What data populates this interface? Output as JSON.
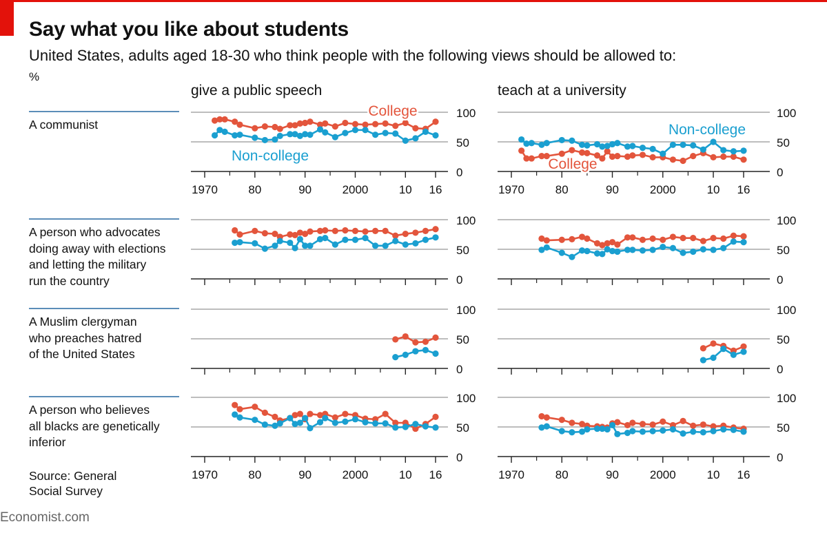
{
  "header": {
    "title": "Say what you like about students",
    "subtitle": "United States, adults aged 18-30 who think people with the following views should be allowed to:",
    "unit": "%"
  },
  "columns": [
    "give a public speech",
    "teach at a university"
  ],
  "rows": [
    {
      "label_lines": [
        "A communist"
      ]
    },
    {
      "label_lines": [
        "A person who advocates",
        "doing away with elections",
        "and letting the military",
        "run the country"
      ]
    },
    {
      "label_lines": [
        "A Muslim clergyman",
        "who preaches hatred",
        "of the United States"
      ]
    },
    {
      "label_lines": [
        "A person who believes",
        "all blacks are genetically",
        "inferior"
      ]
    }
  ],
  "source_lines": [
    "Source: General",
    "Social Survey"
  ],
  "credit": "Economist.com",
  "colors": {
    "college": "#e3553c",
    "noncollege": "#1a9fd0",
    "accent": "#e3120b",
    "grid": "#bdbdbd",
    "rule": "#5b8db8",
    "axis": "#222222",
    "text": "#111111"
  },
  "chart_data": {
    "type": "line",
    "y_range": [
      0,
      100
    ],
    "y_ticks": [
      0,
      50,
      100
    ],
    "x_range": [
      1970,
      2016
    ],
    "x_tick_values": [
      1970,
      1980,
      1990,
      2000,
      2010,
      2016
    ],
    "x_tick_labels": [
      "1970",
      "80",
      "90",
      "2000",
      "10",
      "16"
    ],
    "series_names": [
      "College",
      "Non-college"
    ],
    "panels": [
      {
        "row": 0,
        "col": 0,
        "labels": {
          "College": "College",
          "Non-college": "Non-college"
        },
        "series": [
          {
            "name": "College",
            "x": [
              1972,
              1973,
              1974,
              1976,
              1977,
              1980,
              1982,
              1984,
              1985,
              1987,
              1988,
              1989,
              1990,
              1991,
              1993,
              1994,
              1996,
              1998,
              2000,
              2002,
              2004,
              2006,
              2008,
              2010,
              2012,
              2014,
              2016
            ],
            "y": [
              86,
              88,
              88,
              84,
              79,
              73,
              76,
              75,
              72,
              78,
              78,
              81,
              82,
              84,
              79,
              81,
              76,
              82,
              80,
              79,
              80,
              81,
              77,
              82,
              73,
              72,
              84
            ]
          },
          {
            "name": "Non-college",
            "x": [
              1972,
              1973,
              1974,
              1976,
              1977,
              1980,
              1982,
              1984,
              1985,
              1987,
              1988,
              1989,
              1990,
              1991,
              1993,
              1994,
              1996,
              1998,
              2000,
              2002,
              2004,
              2006,
              2008,
              2010,
              2012,
              2014,
              2016
            ],
            "y": [
              61,
              70,
              67,
              61,
              62,
              57,
              53,
              54,
              60,
              63,
              63,
              60,
              63,
              62,
              71,
              66,
              58,
              65,
              70,
              70,
              62,
              65,
              64,
              52,
              56,
              67,
              61
            ]
          }
        ]
      },
      {
        "row": 0,
        "col": 1,
        "labels": {
          "College": "College",
          "Non-college": "Non-college"
        },
        "series": [
          {
            "name": "College",
            "x": [
              1972,
              1973,
              1974,
              1976,
              1977,
              1980,
              1982,
              1984,
              1985,
              1987,
              1988,
              1989,
              1990,
              1991,
              1993,
              1994,
              1996,
              1998,
              2000,
              2002,
              2004,
              2006,
              2008,
              2010,
              2012,
              2014,
              2016
            ],
            "y": [
              35,
              22,
              22,
              26,
              26,
              30,
              36,
              32,
              31,
              27,
              22,
              34,
              25,
              26,
              25,
              27,
              28,
              24,
              24,
              20,
              18,
              26,
              31,
              24,
              25,
              25,
              20
            ]
          },
          {
            "name": "Non-college",
            "x": [
              1972,
              1973,
              1974,
              1976,
              1977,
              1980,
              1982,
              1984,
              1985,
              1987,
              1988,
              1989,
              1990,
              1991,
              1993,
              1994,
              1996,
              1998,
              2000,
              2002,
              2004,
              2006,
              2008,
              2010,
              2012,
              2014,
              2016
            ],
            "y": [
              54,
              47,
              48,
              45,
              48,
              53,
              52,
              45,
              44,
              46,
              42,
              43,
              46,
              48,
              42,
              43,
              40,
              38,
              30,
              45,
              45,
              44,
              37,
              50,
              36,
              34,
              35
            ]
          }
        ]
      },
      {
        "row": 1,
        "col": 0,
        "labels": {},
        "series": [
          {
            "name": "College",
            "x": [
              1976,
              1977,
              1980,
              1982,
              1984,
              1985,
              1987,
              1988,
              1989,
              1990,
              1991,
              1993,
              1994,
              1996,
              1998,
              2000,
              2002,
              2004,
              2006,
              2008,
              2010,
              2012,
              2014,
              2016
            ],
            "y": [
              82,
              75,
              81,
              77,
              76,
              71,
              75,
              74,
              78,
              76,
              80,
              81,
              82,
              81,
              82,
              81,
              80,
              81,
              81,
              73,
              76,
              78,
              81,
              84
            ]
          },
          {
            "name": "Non-college",
            "x": [
              1976,
              1977,
              1980,
              1982,
              1984,
              1985,
              1987,
              1988,
              1989,
              1990,
              1991,
              1993,
              1994,
              1996,
              1998,
              2000,
              2002,
              2004,
              2006,
              2008,
              2010,
              2012,
              2014,
              2016
            ],
            "y": [
              61,
              62,
              60,
              51,
              56,
              64,
              61,
              52,
              67,
              56,
              56,
              67,
              69,
              58,
              66,
              66,
              69,
              56,
              56,
              64,
              58,
              60,
              66,
              70
            ]
          }
        ]
      },
      {
        "row": 1,
        "col": 1,
        "labels": {},
        "series": [
          {
            "name": "College",
            "x": [
              1976,
              1977,
              1980,
              1982,
              1984,
              1985,
              1987,
              1988,
              1989,
              1990,
              1991,
              1993,
              1994,
              1996,
              1998,
              2000,
              2002,
              2004,
              2006,
              2008,
              2010,
              2012,
              2014,
              2016
            ],
            "y": [
              68,
              65,
              66,
              67,
              71,
              68,
              60,
              57,
              60,
              62,
              58,
              70,
              70,
              66,
              68,
              66,
              71,
              69,
              69,
              64,
              69,
              68,
              73,
              72
            ]
          },
          {
            "name": "Non-college",
            "x": [
              1976,
              1977,
              1980,
              1982,
              1984,
              1985,
              1987,
              1988,
              1989,
              1990,
              1991,
              1993,
              1994,
              1996,
              1998,
              2000,
              2002,
              2004,
              2006,
              2008,
              2010,
              2012,
              2014,
              2016
            ],
            "y": [
              49,
              53,
              44,
              37,
              48,
              47,
              43,
              42,
              50,
              47,
              46,
              49,
              49,
              48,
              49,
              54,
              52,
              44,
              46,
              50,
              49,
              52,
              63,
              62
            ]
          }
        ]
      },
      {
        "row": 2,
        "col": 0,
        "labels": {},
        "series": [
          {
            "name": "College",
            "x": [
              2008,
              2010,
              2012,
              2014,
              2016
            ],
            "y": [
              49,
              54,
              44,
              45,
              52
            ]
          },
          {
            "name": "Non-college",
            "x": [
              2008,
              2010,
              2012,
              2014,
              2016
            ],
            "y": [
              19,
              23,
              29,
              31,
              25
            ]
          }
        ]
      },
      {
        "row": 2,
        "col": 1,
        "labels": {},
        "series": [
          {
            "name": "College",
            "x": [
              2008,
              2010,
              2012,
              2014,
              2016
            ],
            "y": [
              34,
              42,
              38,
              30,
              37
            ]
          },
          {
            "name": "Non-college",
            "x": [
              2008,
              2010,
              2012,
              2014,
              2016
            ],
            "y": [
              14,
              18,
              33,
              23,
              28
            ]
          }
        ]
      },
      {
        "row": 3,
        "col": 0,
        "labels": {},
        "series": [
          {
            "name": "College",
            "x": [
              1976,
              1977,
              1980,
              1982,
              1984,
              1985,
              1987,
              1988,
              1989,
              1990,
              1991,
              1993,
              1994,
              1996,
              1998,
              2000,
              2002,
              2004,
              2006,
              2008,
              2010,
              2012,
              2014,
              2016
            ],
            "y": [
              87,
              80,
              84,
              74,
              67,
              61,
              65,
              70,
              72,
              63,
              72,
              70,
              72,
              66,
              72,
              70,
              64,
              63,
              72,
              57,
              57,
              47,
              55,
              67
            ]
          },
          {
            "name": "Non-college",
            "x": [
              1976,
              1977,
              1980,
              1982,
              1984,
              1985,
              1987,
              1988,
              1989,
              1990,
              1991,
              1993,
              1994,
              1996,
              1998,
              2000,
              2002,
              2004,
              2006,
              2008,
              2010,
              2012,
              2014,
              2016
            ],
            "y": [
              71,
              66,
              62,
              54,
              52,
              56,
              65,
              55,
              57,
              65,
              48,
              58,
              65,
              57,
              59,
              63,
              58,
              56,
              56,
              49,
              50,
              55,
              51,
              49
            ]
          }
        ]
      },
      {
        "row": 3,
        "col": 1,
        "labels": {},
        "series": [
          {
            "name": "College",
            "x": [
              1976,
              1977,
              1980,
              1982,
              1984,
              1985,
              1987,
              1988,
              1989,
              1990,
              1991,
              1993,
              1994,
              1996,
              1998,
              2000,
              2002,
              2004,
              2006,
              2008,
              2010,
              2012,
              2014,
              2016
            ],
            "y": [
              68,
              66,
              62,
              57,
              55,
              52,
              51,
              50,
              49,
              56,
              58,
              53,
              57,
              55,
              54,
              59,
              53,
              60,
              52,
              54,
              51,
              52,
              49,
              47
            ]
          },
          {
            "name": "Non-college",
            "x": [
              1976,
              1977,
              1980,
              1982,
              1984,
              1985,
              1987,
              1988,
              1989,
              1990,
              1991,
              1993,
              1994,
              1996,
              1998,
              2000,
              2002,
              2004,
              2006,
              2008,
              2010,
              2012,
              2014,
              2016
            ],
            "y": [
              49,
              51,
              43,
              41,
              42,
              46,
              47,
              47,
              46,
              53,
              38,
              40,
              43,
              42,
              43,
              44,
              46,
              39,
              42,
              41,
              43,
              46,
              45,
              42
            ]
          }
        ]
      }
    ]
  }
}
